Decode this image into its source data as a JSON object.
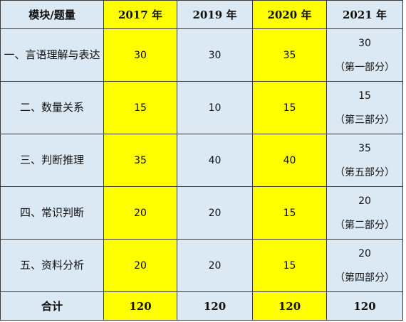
{
  "headers": [
    "模块/题量",
    "2017 年",
    "2019 年",
    "2020 年",
    "2021 年"
  ],
  "rows": [
    {
      "module": "一、言语理解与表达",
      "y2017": "30",
      "y2019": "30",
      "y2020": "35",
      "y2021": "30",
      "y2021_part": "（第一部分）"
    },
    {
      "module": "二、数量关系",
      "y2017": "15",
      "y2019": "10",
      "y2020": "15",
      "y2021": "15",
      "y2021_part": "（第三部分）"
    },
    {
      "module": "三、判断推理",
      "y2017": "35",
      "y2019": "40",
      "y2020": "40",
      "y2021": "35",
      "y2021_part": "（第五部分）"
    },
    {
      "module": "四、常识判断",
      "y2017": "20",
      "y2019": "20",
      "y2020": "15",
      "y2021": "20",
      "y2021_part": "（第二部分）"
    },
    {
      "module": "五、资料分析",
      "y2017": "20",
      "y2019": "20",
      "y2020": "15",
      "y2021": "20",
      "y2021_part": "（第四部分）"
    }
  ],
  "total": {
    "label": "合计",
    "y2017": "120",
    "y2019": "120",
    "y2020": "120",
    "y2021": "120"
  },
  "colors": {
    "header_bg": "#dbe9f4",
    "highlight": "#ffff00",
    "border": "#3a3a3a"
  }
}
